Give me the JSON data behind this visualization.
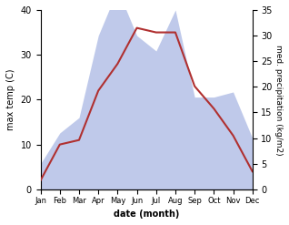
{
  "months": [
    "Jan",
    "Feb",
    "Mar",
    "Apr",
    "May",
    "Jun",
    "Jul",
    "Aug",
    "Sep",
    "Oct",
    "Nov",
    "Dec"
  ],
  "temperature": [
    2,
    10,
    11,
    22,
    28,
    36,
    35,
    35,
    23,
    18,
    12,
    4
  ],
  "precipitation": [
    5,
    11,
    14,
    30,
    39,
    30,
    27,
    35,
    18,
    18,
    19,
    10
  ],
  "temp_color": "#b03030",
  "precip_fill_color": "#b8c4e8",
  "temp_ylim": [
    0,
    40
  ],
  "precip_ylim": [
    0,
    35
  ],
  "temp_yticks": [
    0,
    10,
    20,
    30,
    40
  ],
  "precip_yticks": [
    0,
    5,
    10,
    15,
    20,
    25,
    30,
    35
  ],
  "ylabel_left": "max temp (C)",
  "ylabel_right": "med. precipitation (kg/m2)",
  "xlabel": "date (month)",
  "background_color": "#ffffff"
}
